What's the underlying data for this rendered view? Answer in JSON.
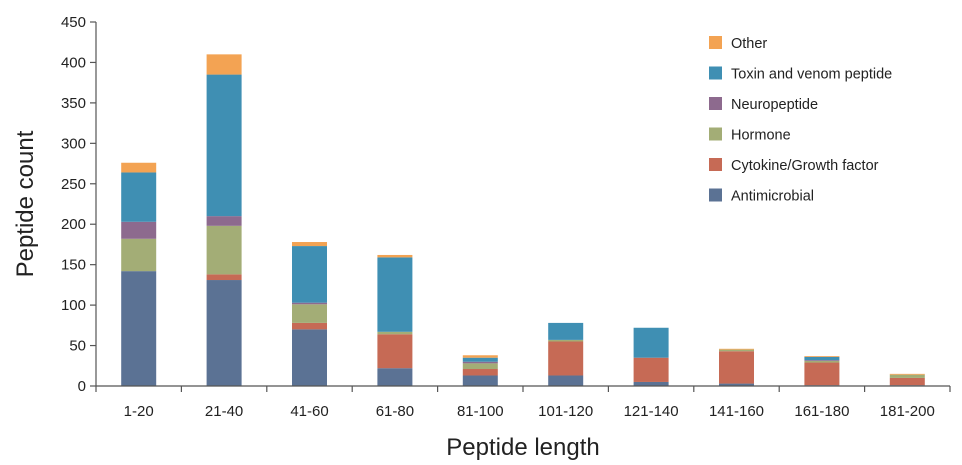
{
  "chart_data": {
    "type": "bar",
    "stacked": true,
    "xlabel": "Peptide length",
    "ylabel": "Peptide count",
    "ylim": [
      0,
      450
    ],
    "yticks": [
      0,
      50,
      100,
      150,
      200,
      250,
      300,
      350,
      400,
      450
    ],
    "grid": false,
    "legend_position": "top-right",
    "categories": [
      "1-20",
      "21-40",
      "41-60",
      "61-80",
      "81-100",
      "101-120",
      "121-140",
      "141-160",
      "161-180",
      "181-200"
    ],
    "series": [
      {
        "name": "Antimicrobial",
        "color": "#5b7294",
        "values": [
          142,
          131,
          70,
          22,
          13,
          13,
          5,
          3,
          1,
          1
        ]
      },
      {
        "name": "Cytokine/Growth factor",
        "color": "#c66a55",
        "values": [
          0,
          7,
          8,
          42,
          8,
          42,
          30,
          40,
          28,
          9
        ]
      },
      {
        "name": "Hormone",
        "color": "#a3ad76",
        "values": [
          40,
          60,
          23,
          3,
          7,
          2,
          0,
          2,
          2,
          4
        ]
      },
      {
        "name": "Neuropeptide",
        "color": "#8d6a8e",
        "values": [
          21,
          12,
          2,
          0,
          2,
          0,
          0,
          0,
          1,
          0
        ]
      },
      {
        "name": "Toxin and venom peptide",
        "color": "#3f8fb3",
        "values": [
          61,
          175,
          70,
          92,
          5,
          21,
          37,
          0,
          4,
          0
        ]
      },
      {
        "name": "Other",
        "color": "#f3a353",
        "values": [
          12,
          25,
          5,
          3,
          3,
          0,
          0,
          1,
          1,
          1
        ]
      }
    ]
  }
}
